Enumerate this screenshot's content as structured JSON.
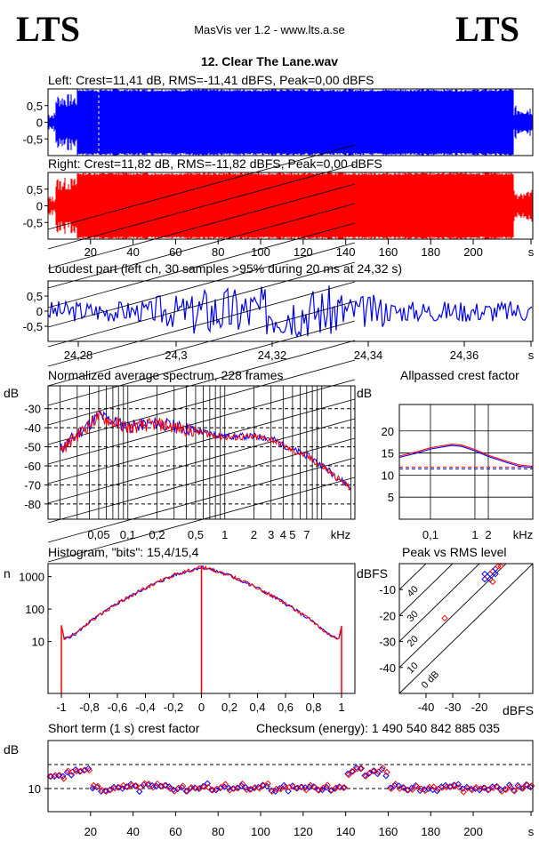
{
  "header": {
    "logo_left": "LTS",
    "logo_right": "LTS",
    "app": "MasVis ver 1.2 - www.lts.a.se",
    "file": "12. Clear The Lane.wav"
  },
  "colors": {
    "left": "#0000ff",
    "right": "#ff0000"
  },
  "chart_data": [
    {
      "type": "area",
      "title": "Left: Crest=11,41 dB, RMS=-11,41 dBFS, Peak=0,00 dBFS",
      "channel": "left",
      "yticks": [
        "0,5",
        "0",
        "-0,5"
      ],
      "ylim": [
        -1,
        1
      ],
      "xlim": [
        0,
        228
      ]
    },
    {
      "type": "area",
      "title": "Right: Crest=11,82 dB, RMS=-11,82 dBFS, Peak=0,00 dBFS",
      "channel": "right",
      "yticks": [
        "0,5",
        "0",
        "-0,5"
      ],
      "xticks": [
        "20",
        "40",
        "60",
        "80",
        "100",
        "120",
        "140",
        "160",
        "180",
        "200",
        "s"
      ],
      "ylim": [
        -1,
        1
      ],
      "xlim": [
        0,
        228
      ]
    },
    {
      "type": "line",
      "title": "Loudest part (left  ch, 30 samples >95% during 20 ms at 24,32 s)",
      "yticks": [
        "0,5",
        "0",
        "-0,5"
      ],
      "xticks": [
        "24,28",
        "24,3",
        "24,32",
        "24,34",
        "24,36",
        "s"
      ],
      "xlim": [
        24.27,
        24.37
      ]
    },
    {
      "type": "line",
      "title": "Normalized average spectrum, 228 frames",
      "ylabel": "dB",
      "yticks": [
        "-30",
        "-40",
        "-50",
        "-60",
        "-70",
        "-80"
      ],
      "xticks": [
        "0,05",
        "0,1",
        "0,2",
        "0,5",
        "1",
        "2",
        "3",
        "4",
        "5",
        "7",
        "kHz"
      ],
      "series": [
        {
          "points": [
            [
              0.02,
              -52
            ],
            [
              0.03,
              -44
            ],
            [
              0.05,
              -34
            ],
            [
              0.07,
              -37
            ],
            [
              0.1,
              -40
            ],
            [
              0.2,
              -38
            ],
            [
              0.5,
              -42
            ],
            [
              1,
              -45
            ],
            [
              2,
              -45
            ],
            [
              3,
              -46
            ],
            [
              5,
              -52
            ],
            [
              7,
              -55
            ],
            [
              10,
              -60
            ],
            [
              15,
              -67
            ],
            [
              20,
              -72
            ]
          ]
        }
      ]
    },
    {
      "type": "line",
      "title": "Allpassed crest factor",
      "ylabel": "dB",
      "yticks": [
        "20",
        "15",
        "10",
        "5"
      ],
      "xticks": [
        "0,1",
        "1",
        "2",
        "kHz"
      ],
      "series": [
        {
          "points": [
            [
              0.02,
              14.3
            ],
            [
              0.05,
              15.3
            ],
            [
              0.1,
              16.2
            ],
            [
              0.3,
              17.0
            ],
            [
              0.5,
              16.8
            ],
            [
              1,
              15.8
            ],
            [
              2,
              14.5
            ],
            [
              5,
              13.2
            ],
            [
              10,
              12.3
            ],
            [
              20,
              12.0
            ]
          ]
        }
      ]
    },
    {
      "type": "line",
      "title": "Histogram, \"bits\": 15,4/15,4",
      "ylabel": "n",
      "yticks": [
        "1000",
        "100",
        "10"
      ],
      "xticks": [
        "-1",
        "-0,8",
        "-0,6",
        "-0,4",
        "-0,2",
        "0",
        "0,2",
        "0,4",
        "0,6",
        "0,8",
        "1"
      ],
      "series": [
        {
          "points": [
            [
              -1,
              30
            ],
            [
              -0.98,
              12
            ],
            [
              -0.9,
              17
            ],
            [
              -0.8,
              40
            ],
            [
              -0.6,
              150
            ],
            [
              -0.4,
              450
            ],
            [
              -0.2,
              1100
            ],
            [
              0,
              2000
            ],
            [
              0.2,
              1100
            ],
            [
              0.4,
              450
            ],
            [
              0.6,
              150
            ],
            [
              0.8,
              40
            ],
            [
              0.9,
              17
            ],
            [
              0.98,
              12
            ],
            [
              1,
              30
            ]
          ]
        }
      ]
    },
    {
      "type": "scatter",
      "title": "Peak vs RMS level",
      "ylabel": "dBFS",
      "xlabel": "dBFS",
      "yticks": [
        "-10",
        "-20",
        "-30",
        "-40"
      ],
      "xticks": [
        "-40",
        "-30",
        "-20"
      ],
      "diag_labels": [
        "40",
        "30",
        "20",
        "10",
        "0 dB"
      ],
      "series": [
        {
          "points": [
            [
              -33,
              -21
            ],
            [
              -18,
              -6
            ],
            [
              -17,
              -5
            ],
            [
              -16,
              -4
            ],
            [
              -15,
              -3
            ],
            [
              -14,
              -2
            ],
            [
              -13,
              -1
            ],
            [
              -16,
              -6
            ],
            [
              -15,
              -7
            ],
            [
              -14,
              -4
            ],
            [
              -12,
              -1
            ],
            [
              -18,
              -4
            ]
          ]
        }
      ]
    },
    {
      "type": "scatter",
      "title": "Short term (1 s) crest factor",
      "ylabel": "dB",
      "yticks": [
        "10"
      ],
      "xticks": [
        "20",
        "40",
        "60",
        "80",
        "100",
        "120",
        "140",
        "160",
        "180",
        "200",
        "s"
      ],
      "checksum": "Checksum (energy):  1 490 540 842 885 035"
    }
  ]
}
